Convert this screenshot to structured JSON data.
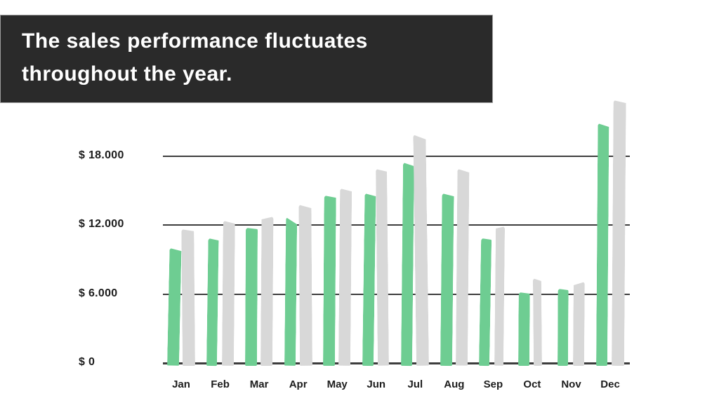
{
  "title": {
    "line1": "The sales performance fluctuates",
    "line2": "throughout the year."
  },
  "colors": {
    "title_bg": "#2a2a2a",
    "title_text": "#ffffff",
    "bar_green": "#6ecd92",
    "bar_gray": "#d8d8d8",
    "gridline": "#3d3d3d",
    "label_text": "#1c1c1c"
  },
  "chart_data": {
    "type": "bar",
    "title": "",
    "xlabel": "",
    "ylabel": "",
    "categories": [
      "Jan",
      "Feb",
      "Mar",
      "Apr",
      "May",
      "Jun",
      "Jul",
      "Aug",
      "Sep",
      "Oct",
      "Nov",
      "Dec"
    ],
    "series": [
      {
        "name": "green",
        "color": "#6ecd92",
        "values": [
          10100,
          11000,
          11900,
          12800,
          14700,
          14900,
          17600,
          14900,
          11000,
          6300,
          6600,
          21000
        ]
      },
      {
        "name": "gray",
        "color": "#d8d8d8",
        "values": [
          11800,
          12500,
          12900,
          13900,
          15300,
          17000,
          20000,
          17000,
          12000,
          7500,
          7200,
          23000
        ]
      }
    ],
    "y_axis": {
      "ticks": [
        {
          "label": "$ 0",
          "value": 0
        },
        {
          "label": "$ 6.000",
          "value": 6000
        },
        {
          "label": "$ 12.000",
          "value": 12000
        },
        {
          "label": "$ 18.000",
          "value": 18000
        }
      ],
      "ylim": [
        0,
        24000
      ]
    },
    "grid": true,
    "legend": false
  }
}
